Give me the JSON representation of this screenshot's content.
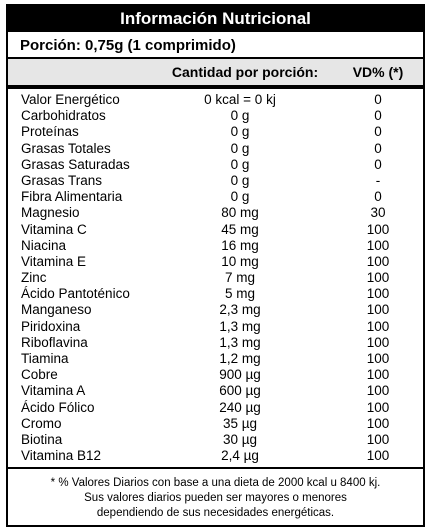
{
  "header": {
    "title": "Información Nutricional",
    "serving": "Porción: 0,75g (1 comprimido)"
  },
  "table": {
    "columns": [
      "Cantidad por porción:",
      "VD% (*)"
    ],
    "rows": [
      [
        "Valor Energético",
        "0 kcal = 0 kj",
        "0"
      ],
      [
        "Carbohidratos",
        "0 g",
        "0"
      ],
      [
        "Proteínas",
        "0 g",
        "0"
      ],
      [
        "Grasas Totales",
        "0 g",
        "0"
      ],
      [
        "Grasas Saturadas",
        "0 g",
        "0"
      ],
      [
        "Grasas Trans",
        "0 g",
        "-"
      ],
      [
        "Fibra Alimentaria",
        "0 g",
        "0"
      ],
      [
        "Magnesio",
        "80 mg",
        "30"
      ],
      [
        "Vitamina C",
        "45 mg",
        "100"
      ],
      [
        "Niacina",
        "16 mg",
        "100"
      ],
      [
        "Vitamina E",
        "10 mg",
        "100"
      ],
      [
        "Zinc",
        "7 mg",
        "100"
      ],
      [
        "Ácido Pantoténico",
        "5 mg",
        "100"
      ],
      [
        "Manganeso",
        "2,3 mg",
        "100"
      ],
      [
        "Piridoxina",
        "1,3 mg",
        "100"
      ],
      [
        "Riboflavina",
        "1,3 mg",
        "100"
      ],
      [
        "Tiamina",
        "1,2 mg",
        "100"
      ],
      [
        "Cobre",
        "900 µg",
        "100"
      ],
      [
        "Vitamina A",
        "600 µg",
        "100"
      ],
      [
        "Ácido Fólico",
        "240 µg",
        "100"
      ],
      [
        "Cromo",
        "35 µg",
        "100"
      ],
      [
        "Biotina",
        "30 µg",
        "100"
      ],
      [
        "Vitamina B12",
        "2,4 µg",
        "100"
      ]
    ]
  },
  "footnote": [
    "* % Valores Diarios con base a una dieta de 2000 kcal u 8400 kj.",
    "Sus valores diarios pueden ser mayores o menores",
    "dependiendo de sus necesidades energéticas."
  ]
}
